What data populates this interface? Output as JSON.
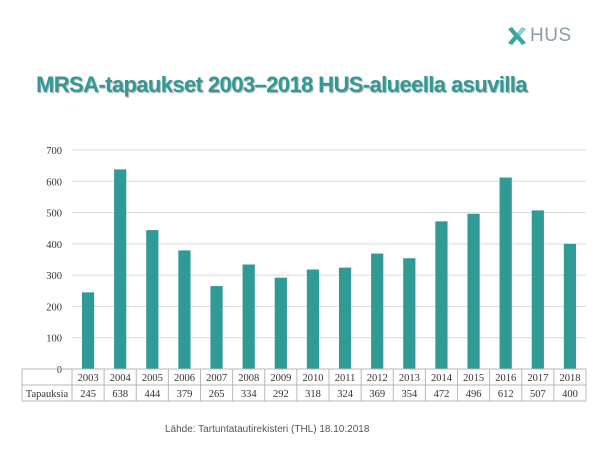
{
  "logo": {
    "text": "HUS",
    "icon": "hus-cross-icon",
    "color": "#8a9ca8",
    "icon_color": "#3aa6a4"
  },
  "title": "MRSA-tapaukset 2003–2018 HUS-alueella asuvilla",
  "source": "Lähde: Tartuntatautirekisteri (THL) 18.10.2018",
  "chart_data": {
    "type": "bar",
    "title": "",
    "xlabel": "",
    "ylabel": "",
    "categories": [
      "2003",
      "2004",
      "2005",
      "2006",
      "2007",
      "2008",
      "2009",
      "2010",
      "2011",
      "2012",
      "2013",
      "2014",
      "2015",
      "2016",
      "2017",
      "2018"
    ],
    "series": [
      {
        "name": "Tapauksia",
        "values": [
          245,
          638,
          444,
          379,
          265,
          334,
          292,
          318,
          324,
          369,
          354,
          472,
          496,
          612,
          507,
          400
        ],
        "color": "#2f9a96"
      }
    ],
    "ylim": [
      0,
      700
    ],
    "yticks": [
      0,
      100,
      200,
      300,
      400,
      500,
      600,
      700
    ],
    "grid": true,
    "legend": "none",
    "data_table": true
  }
}
